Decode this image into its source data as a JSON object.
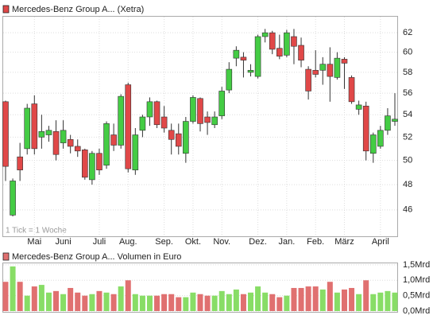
{
  "chart_data": [
    {
      "type": "candlestick",
      "title": "Mercedes-Benz Group A... (Xetra)",
      "note": "1 Tick = 1 Woche",
      "categories": [
        null,
        null,
        null,
        null,
        "Mai",
        null,
        null,
        null,
        "Juni",
        null,
        null,
        null,
        null,
        "Juli",
        null,
        null,
        null,
        "Aug.",
        null,
        null,
        null,
        null,
        "Sep.",
        null,
        null,
        null,
        "Okt.",
        null,
        null,
        null,
        "Nov.",
        null,
        null,
        null,
        null,
        "Dez.",
        null,
        null,
        null,
        "Jan.",
        null,
        null,
        null,
        "Feb.",
        null,
        null,
        null,
        "März",
        null,
        null,
        null,
        null,
        "April",
        null,
        null
      ],
      "open": [
        55.2,
        45.6,
        50.3,
        51.0,
        55.0,
        52.0,
        52.2,
        52.5,
        51.5,
        51.8,
        51.2,
        50.9,
        48.4,
        50.6,
        49.6,
        52.2,
        51.3,
        56.8,
        49.2,
        52.6,
        53.8,
        55.2,
        53.8,
        52.6,
        52.3,
        50.6,
        53.4,
        55.5,
        53.8,
        53.1,
        53.9,
        56.3,
        59.4,
        59.5,
        58.0,
        57.6,
        61.6,
        62.0,
        60.4,
        59.7,
        61.6,
        60.7,
        58.3,
        58.2,
        58.2,
        58.8,
        57.5,
        59.3,
        57.5,
        54.5,
        54.8,
        50.6,
        51.2,
        52.6,
        53.4
      ],
      "high": [
        55.3,
        48.5,
        51.5,
        55.0,
        55.8,
        54.0,
        53.0,
        53.5,
        53.5,
        52.2,
        51.8,
        51.0,
        50.8,
        51.0,
        53.4,
        53.2,
        55.9,
        57.0,
        52.8,
        54.0,
        55.6,
        55.3,
        54.8,
        53.2,
        53.2,
        53.8,
        55.8,
        55.6,
        54.3,
        54.3,
        56.6,
        59.0,
        60.6,
        60.0,
        58.8,
        61.8,
        62.4,
        62.2,
        61.8,
        62.3,
        62.4,
        61.5,
        58.6,
        60.2,
        59.5,
        60.5,
        60.0,
        59.5,
        57.7,
        55.3,
        55.2,
        52.4,
        53.0,
        54.6,
        56.0
      ],
      "low": [
        48.3,
        45.5,
        48.3,
        50.5,
        50.5,
        51.0,
        51.6,
        50.0,
        51.0,
        50.6,
        50.3,
        48.4,
        48.0,
        48.8,
        49.3,
        50.8,
        51.0,
        49.0,
        48.8,
        52.0,
        53.0,
        52.8,
        52.4,
        50.5,
        50.5,
        49.8,
        53.2,
        52.5,
        52.2,
        52.8,
        53.6,
        56.0,
        58.6,
        57.5,
        57.6,
        57.4,
        61.0,
        59.8,
        59.3,
        59.5,
        58.8,
        58.5,
        55.4,
        57.5,
        56.8,
        55.2,
        57.3,
        56.4,
        55.0,
        54.0,
        50.0,
        49.8,
        51.0,
        52.2,
        53.0
      ],
      "close": [
        49.5,
        48.3,
        49.2,
        54.6,
        51.0,
        52.5,
        52.6,
        50.5,
        52.6,
        51.2,
        50.8,
        48.6,
        50.6,
        49.2,
        53.2,
        51.3,
        55.7,
        49.3,
        52.2,
        53.8,
        55.2,
        53.1,
        52.8,
        51.8,
        51.2,
        53.4,
        55.6,
        53.2,
        53.3,
        53.8,
        56.2,
        58.3,
        60.2,
        59.2,
        58.2,
        61.6,
        62.0,
        60.3,
        59.6,
        62.0,
        60.6,
        59.2,
        56.2,
        57.8,
        58.8,
        57.6,
        59.4,
        58.9,
        55.2,
        54.9,
        50.8,
        52.2,
        52.6,
        53.9,
        53.6
      ],
      "up_color": "#44cc44",
      "down_color": "#e04848",
      "log_scale": true,
      "ylim": [
        44,
        63.7
      ],
      "yticks": [
        46,
        48,
        50,
        52,
        54,
        56,
        58,
        60,
        62
      ],
      "grid": true
    },
    {
      "type": "bar",
      "title": "Mercedes-Benz Group A... Volumen in Euro",
      "values": [
        0.95,
        1.45,
        0.95,
        0.5,
        0.8,
        0.85,
        0.6,
        0.65,
        0.55,
        0.75,
        0.6,
        0.5,
        0.55,
        0.65,
        0.6,
        0.55,
        0.8,
        1.0,
        0.55,
        0.5,
        0.5,
        0.5,
        0.55,
        0.55,
        0.45,
        0.45,
        0.6,
        0.55,
        0.5,
        0.5,
        0.65,
        0.55,
        0.7,
        0.55,
        0.6,
        0.8,
        0.6,
        0.55,
        0.45,
        0.5,
        0.75,
        0.75,
        0.8,
        0.8,
        0.7,
        0.95,
        0.6,
        0.7,
        0.75,
        0.55,
        1.0,
        0.55,
        0.6,
        0.65,
        0.6
      ],
      "up_color": "#88dd66",
      "down_color": "#e07070",
      "ylim": [
        0,
        1.55
      ],
      "yticks": [
        {
          "value": 0,
          "label": "0,0Mrd"
        },
        {
          "value": 0.5,
          "label": "0,5Mrd"
        },
        {
          "value": 1,
          "label": "1,0Mrd"
        },
        {
          "value": 1.5,
          "label": "1,5Mrd"
        }
      ]
    }
  ]
}
